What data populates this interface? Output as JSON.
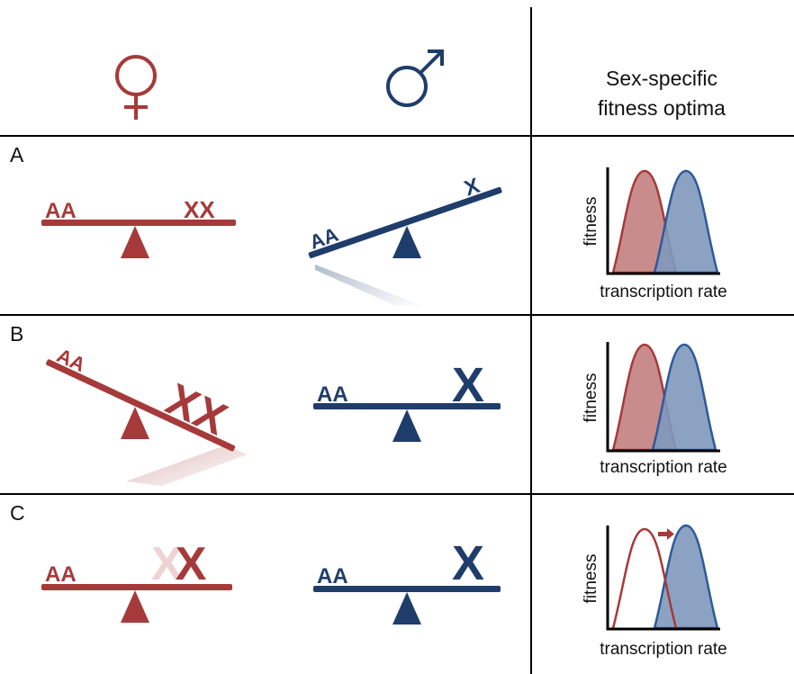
{
  "header": {
    "female_symbol": "♀",
    "male_symbol": "♂",
    "optima_title_line1": "Sex-specific",
    "optima_title_line2": "fitness optima"
  },
  "colors": {
    "female": "#a63a3a",
    "male": "#1f3d6b",
    "female_fill": "#c98c8c",
    "male_fill": "#7f98bd",
    "faded_x": "#efd2d2",
    "rule": "#000000"
  },
  "panels": [
    {
      "letter": "A",
      "female": {
        "left_label": "AA",
        "right_label": "XX",
        "tilt": "level"
      },
      "male": {
        "left_label": "AA",
        "right_label": "X",
        "tilt": "right-up"
      },
      "plot": {
        "ylabel": "fitness",
        "xlabel": "transcription rate",
        "female_curve_filled": true,
        "shift_arrow": false
      }
    },
    {
      "letter": "B",
      "female": {
        "left_label": "AA",
        "right_label": "XX",
        "tilt": "right-down"
      },
      "male": {
        "left_label": "AA",
        "right_label": "X",
        "tilt": "level"
      },
      "plot": {
        "ylabel": "fitness",
        "xlabel": "transcription rate",
        "female_curve_filled": true,
        "shift_arrow": false
      }
    },
    {
      "letter": "C",
      "female": {
        "left_label": "AA",
        "right_label": "XX",
        "tilt": "level",
        "first_x_faded": true
      },
      "male": {
        "left_label": "AA",
        "right_label": "X",
        "tilt": "level"
      },
      "plot": {
        "ylabel": "fitness",
        "xlabel": "transcription rate",
        "female_curve_filled": false,
        "shift_arrow": true
      }
    }
  ]
}
